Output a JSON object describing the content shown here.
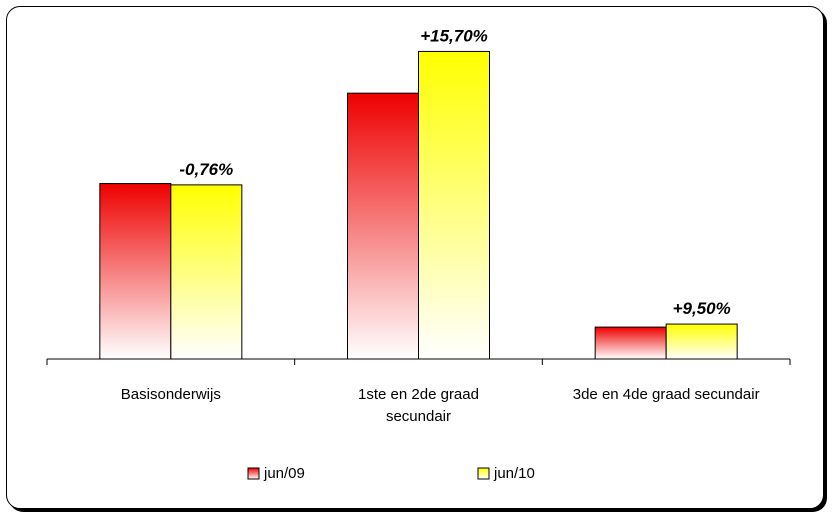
{
  "chart_data": {
    "type": "bar",
    "categories": [
      [
        "Basisonderwijs"
      ],
      [
        "1ste en 2de graad",
        "secundair"
      ],
      [
        "3de en 4de graad secundair"
      ]
    ],
    "series": [
      {
        "name": "jun/09",
        "values": [
          330,
          500,
          60
        ],
        "color_top": "#ee0000",
        "color_bottom": "#ffffff"
      },
      {
        "name": "jun/10",
        "values": [
          327.5,
          578.5,
          65.7
        ],
        "color_top": "#ffff00",
        "color_bottom": "#ffffff"
      }
    ],
    "data_labels": [
      "-0,76%",
      "+15,70%",
      "+9,50%"
    ],
    "ylim": [
      0,
      600
    ],
    "legend_position": "bottom",
    "grid": false
  }
}
